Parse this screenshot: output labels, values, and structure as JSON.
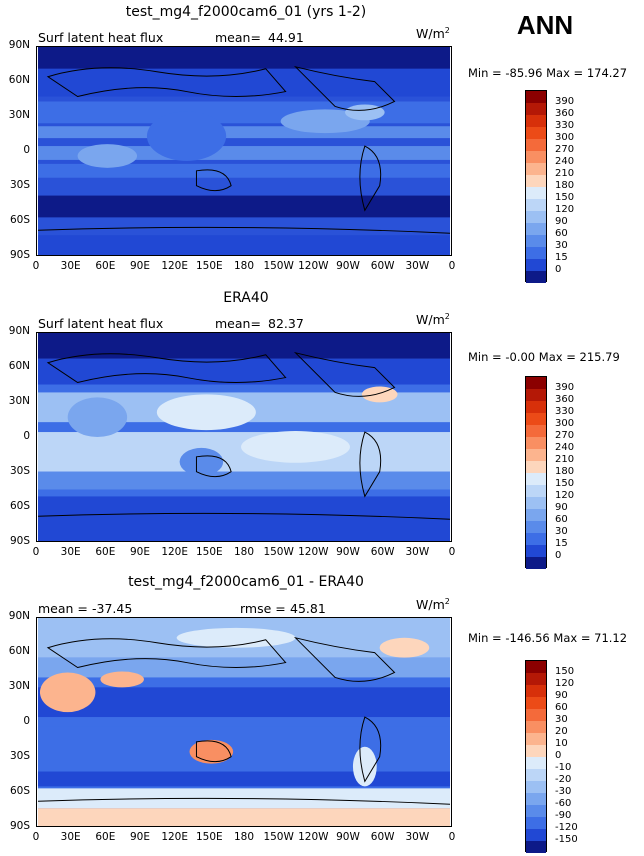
{
  "season_label": "ANN",
  "units": {
    "base": "W/m",
    "exp": "2"
  },
  "lat_ticks": [
    "90N",
    "60N",
    "30N",
    "0",
    "30S",
    "60S",
    "90S"
  ],
  "lon_ticks": [
    "0",
    "30E",
    "60E",
    "90E",
    "120E",
    "150E",
    "180",
    "150W",
    "120W",
    "90W",
    "60W",
    "30W",
    "0"
  ],
  "chart_data": [
    {
      "type": "heatmap",
      "title": "test_mg4_f2000cam6_01 (yrs 1-2)",
      "variable": "Surf latent heat flux",
      "mean_label": "mean=",
      "mean": "44.91",
      "min_label": "Min =",
      "min": "-85.96",
      "max_label": "Max =",
      "max": "174.27",
      "levels": [
        "390",
        "360",
        "330",
        "300",
        "270",
        "240",
        "210",
        "180",
        "150",
        "120",
        "90",
        "60",
        "30",
        "15",
        "0"
      ],
      "colors": [
        "#8b0000",
        "#b41806",
        "#d7300a",
        "#ec4b17",
        "#f46a3a",
        "#f98f62",
        "#fcb48e",
        "#fdd6bc",
        "#dcebfa",
        "#bcd6f7",
        "#9cc0f3",
        "#7aa6ee",
        "#5a8bea",
        "#3d6ee6",
        "#2148d4",
        "#0d1a88"
      ]
    },
    {
      "type": "heatmap",
      "title": "ERA40",
      "variable": "Surf latent heat flux",
      "mean_label": "mean=",
      "mean": "82.37",
      "min_label": "Min =",
      "min": "-0.00",
      "max_label": "Max =",
      "max": "215.79",
      "levels": [
        "390",
        "360",
        "330",
        "300",
        "270",
        "240",
        "210",
        "180",
        "150",
        "120",
        "90",
        "60",
        "30",
        "15",
        "0"
      ],
      "colors": [
        "#8b0000",
        "#b41806",
        "#d7300a",
        "#ec4b17",
        "#f46a3a",
        "#f98f62",
        "#fcb48e",
        "#fdd6bc",
        "#dcebfa",
        "#bcd6f7",
        "#9cc0f3",
        "#7aa6ee",
        "#5a8bea",
        "#3d6ee6",
        "#2148d4",
        "#0d1a88"
      ]
    },
    {
      "type": "heatmap",
      "title": "test_mg4_f2000cam6_01 - ERA40",
      "mean_label": "mean =",
      "mean": "-37.45",
      "rmse_label": "rmse =",
      "rmse": "45.81",
      "min_label": "Min =",
      "min": "-146.56",
      "max_label": "Max =",
      "max": "71.12",
      "levels": [
        "150",
        "120",
        "90",
        "60",
        "30",
        "20",
        "10",
        "0",
        "-10",
        "-20",
        "-30",
        "-60",
        "-90",
        "-120",
        "-150"
      ],
      "colors": [
        "#8b0000",
        "#b41806",
        "#d7300a",
        "#ec4b17",
        "#f46a3a",
        "#f98f62",
        "#fcb48e",
        "#fdd6bc",
        "#dcebfa",
        "#bcd6f7",
        "#9cc0f3",
        "#7aa6ee",
        "#5a8bea",
        "#3d6ee6",
        "#2148d4",
        "#0d1a88"
      ]
    }
  ]
}
